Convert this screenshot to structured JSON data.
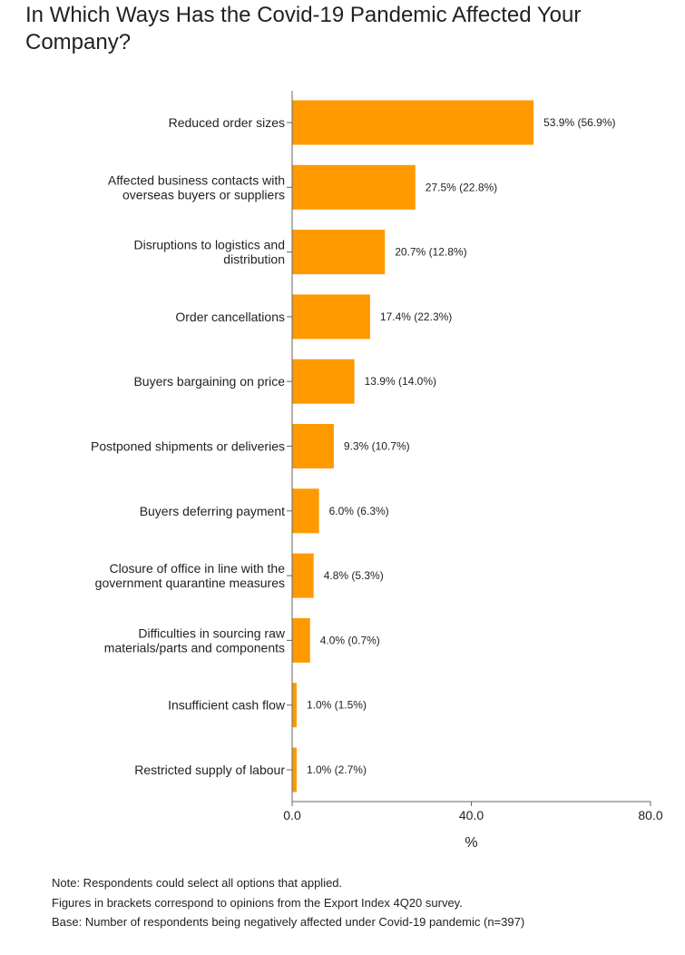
{
  "chart_data": {
    "type": "bar",
    "orientation": "horizontal",
    "title": "In Which Ways Has the Covid-19 Pandemic Affected Your Company?",
    "xlabel": "%",
    "ylabel": "",
    "xlim": [
      0,
      80
    ],
    "ticks": [
      0,
      40,
      80
    ],
    "tick_labels": [
      "0.0",
      "40.0",
      "80.0"
    ],
    "grid": false,
    "bar_color": "#ff9900",
    "categories": [
      [
        "Reduced order sizes"
      ],
      [
        "Affected business contacts with",
        "overseas buyers or suppliers"
      ],
      [
        "Disruptions to logistics and",
        "distribution"
      ],
      [
        "Order cancellations"
      ],
      [
        "Buyers bargaining on price"
      ],
      [
        "Postponed shipments or deliveries"
      ],
      [
        "Buyers deferring payment"
      ],
      [
        "Closure of office in line with the",
        "government quarantine measures"
      ],
      [
        "Difficulties in sourcing raw",
        "materials/parts and components"
      ],
      [
        "Insufficient cash flow"
      ],
      [
        "Restricted supply of labour"
      ]
    ],
    "values": [
      53.9,
      27.5,
      20.7,
      17.4,
      13.9,
      9.3,
      6.0,
      4.8,
      4.0,
      1.0,
      1.0
    ],
    "previous_values": [
      56.9,
      22.8,
      12.8,
      22.3,
      14.0,
      10.7,
      6.3,
      5.3,
      0.7,
      1.5,
      2.7
    ],
    "data_labels": [
      "53.9% (56.9%)",
      "27.5% (22.8%)",
      "20.7% (12.8%)",
      "17.4% (22.3%)",
      "13.9% (14.0%)",
      "9.3% (10.7%)",
      "6.0% (6.3%)",
      "4.8% (5.3%)",
      "4.0% (0.7%)",
      "1.0% (1.5%)",
      "1.0% (2.7%)"
    ]
  },
  "notes": [
    "Note: Respondents could select all options that applied.",
    "Figures in brackets correspond to opinions from the Export Index 4Q20 survey.",
    "Base: Number of respondents being negatively affected under Covid-19 pandemic (n=397)"
  ],
  "colors": {
    "bar": "#ff9900",
    "axis": "#666666",
    "text": "#222222"
  }
}
